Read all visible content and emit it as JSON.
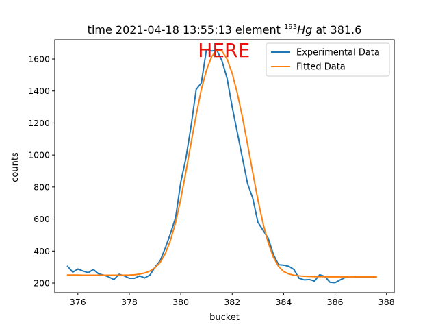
{
  "chart_data": {
    "type": "line",
    "title": {
      "prefix": "time 2021-04-18 13:55:13 element ",
      "mass_number": "193",
      "symbol": "Hg",
      "suffix": " at 381.6"
    },
    "xlabel": "bucket",
    "ylabel": "counts",
    "xlim": [
      375.1,
      388.3
    ],
    "ylim": [
      140,
      1720
    ],
    "xticks": [
      376,
      378,
      380,
      382,
      384,
      386,
      388
    ],
    "yticks": [
      200,
      400,
      600,
      800,
      1000,
      1200,
      1400,
      1600
    ],
    "annotation": {
      "text": "HERE",
      "x": 381.6,
      "y": 1656,
      "color": "#e8120c"
    },
    "legend_position": "top-right",
    "grid": false,
    "series": [
      {
        "name": "Experimental Data",
        "color": "#1f77b4",
        "x": [
          375.6,
          375.8,
          376.0,
          376.2,
          376.4,
          376.6,
          376.8,
          377.0,
          377.2,
          377.4,
          377.6,
          377.8,
          378.0,
          378.2,
          378.4,
          378.6,
          378.8,
          379.0,
          379.2,
          379.4,
          379.6,
          379.8,
          380.0,
          380.2,
          380.4,
          380.6,
          380.8,
          381.0,
          381.2,
          381.4,
          381.6,
          381.8,
          382.0,
          382.2,
          382.4,
          382.6,
          382.8,
          383.0,
          383.2,
          383.4,
          383.6,
          383.8,
          384.0,
          384.2,
          384.4,
          384.6,
          384.8,
          385.0,
          385.2,
          385.4,
          385.6,
          385.8,
          386.0,
          386.2,
          386.4,
          386.6,
          386.8,
          387.0,
          387.2,
          387.4,
          387.6
        ],
        "y": [
          305,
          268,
          288,
          275,
          265,
          285,
          258,
          250,
          238,
          222,
          255,
          245,
          230,
          230,
          245,
          232,
          250,
          300,
          340,
          420,
          510,
          610,
          830,
          980,
          1180,
          1410,
          1450,
          1660,
          1650,
          1655,
          1590,
          1480,
          1300,
          1140,
          980,
          820,
          730,
          580,
          530,
          480,
          380,
          315,
          312,
          305,
          285,
          230,
          220,
          222,
          212,
          252,
          242,
          205,
          202,
          220,
          235,
          240,
          238,
          238,
          238,
          238,
          238
        ]
      },
      {
        "name": "Fitted Data",
        "color": "#ff7f0e",
        "x": [
          375.6,
          375.8,
          376.0,
          376.2,
          376.4,
          376.6,
          376.8,
          377.0,
          377.2,
          377.4,
          377.6,
          377.8,
          378.0,
          378.2,
          378.4,
          378.6,
          378.8,
          379.0,
          379.2,
          379.4,
          379.6,
          379.8,
          380.0,
          380.2,
          380.4,
          380.6,
          380.8,
          381.0,
          381.2,
          381.4,
          381.6,
          381.8,
          382.0,
          382.2,
          382.4,
          382.6,
          382.8,
          383.0,
          383.2,
          383.4,
          383.6,
          383.8,
          384.0,
          384.2,
          384.4,
          384.6,
          384.8,
          385.0,
          385.2,
          385.4,
          385.6,
          385.8,
          386.0,
          386.2,
          386.4,
          386.6,
          386.8,
          387.0,
          387.2,
          387.4,
          387.6
        ],
        "y": [
          250,
          250,
          250,
          249,
          249,
          249,
          249,
          249,
          249,
          249,
          249,
          249,
          250,
          252,
          256,
          263,
          275,
          296,
          330,
          385,
          467,
          580,
          725,
          895,
          1075,
          1250,
          1410,
          1530,
          1615,
          1655,
          1650,
          1600,
          1510,
          1385,
          1235,
          1065,
          890,
          720,
          572,
          452,
          362,
          305,
          272,
          257,
          249,
          245,
          243,
          241,
          240,
          240,
          240,
          239,
          239,
          239,
          239,
          239,
          239,
          239,
          239,
          239,
          239
        ]
      }
    ]
  }
}
